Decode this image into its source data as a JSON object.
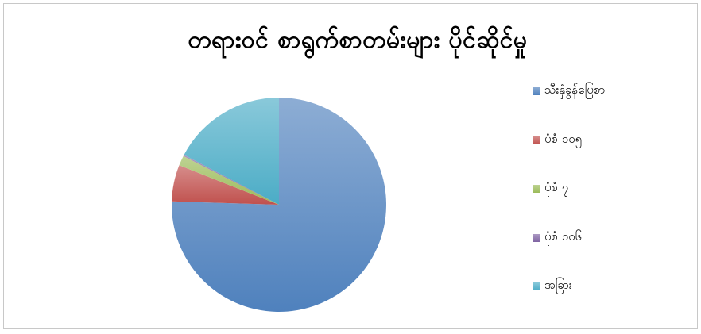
{
  "chart_data": {
    "type": "pie",
    "title": "တရားဝင် စာရွက်စာတမ်းများ ပိုင်ဆိုင်မှု",
    "legend_position": "right",
    "start_angle": "top (12 o'clock), clockwise",
    "slices": [
      {
        "label": "သီးနှံခွန်ပြေစာ",
        "value": 75.5,
        "color": "#4F81BD"
      },
      {
        "label": "ပုံစံ ၁၀၅",
        "value": 5.5,
        "color": "#C0504D"
      },
      {
        "label": "ပုံစံ ၇",
        "value": 1.5,
        "color": "#9BBB59"
      },
      {
        "label": "ပုံစံ ၁၀၆",
        "value": 0.2,
        "color": "#8064A2"
      },
      {
        "label": "အခြား",
        "value": 17.3,
        "color": "#4BACC6"
      }
    ]
  }
}
